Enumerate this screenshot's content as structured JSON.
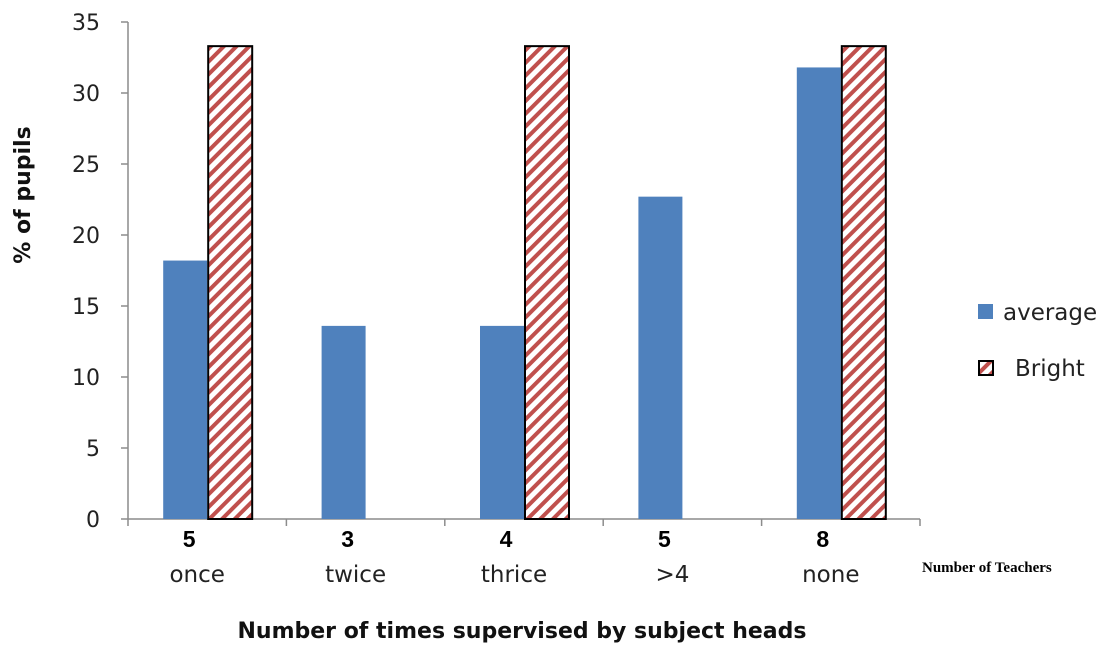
{
  "chart_data": {
    "type": "bar",
    "categories": [
      "once",
      "twice",
      "thrice",
      ">4",
      "none"
    ],
    "series": [
      {
        "name": "average",
        "values": [
          18.2,
          13.6,
          13.6,
          22.7,
          31.8
        ],
        "color": "#4f81bd",
        "pattern": "solid"
      },
      {
        "name": "Bright",
        "values": [
          33.3,
          null,
          33.3,
          null,
          33.3
        ],
        "color": "#c0504d",
        "pattern": "diagonal-hatch"
      }
    ],
    "xlabel": "Number of times supervised by subject heads",
    "ylabel": "% of pupils",
    "ylim": [
      0,
      35
    ],
    "yticks": [
      0,
      5,
      10,
      15,
      20,
      25,
      30,
      35
    ],
    "teacher_counts": [
      "5",
      "3",
      "4",
      "5",
      "8"
    ],
    "teacher_counts_label": "Number of Teachers",
    "legend_position": "right",
    "grid": false
  }
}
